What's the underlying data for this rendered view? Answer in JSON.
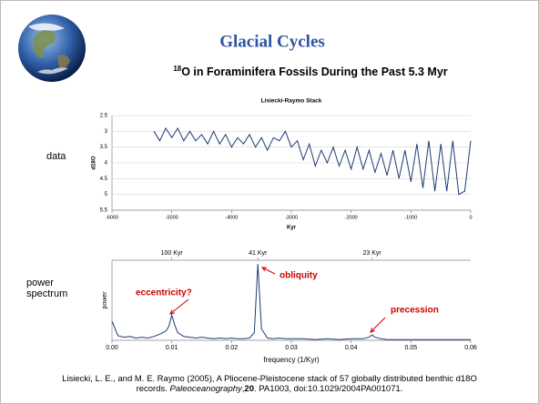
{
  "slide": {
    "title": "Glacial Cycles",
    "subtitle_sup": "18",
    "subtitle": "O in Foraminifera Fossils During the Past 5.3 Myr",
    "side_labels": [
      "data",
      "power spectrum"
    ],
    "citation": [
      "Lisiecki, L. E., and M. E. Raymo (2005), A Pliocene-Pleistocene stack of 57 globally distributed benthic d18O",
      "records. ",
      "Paleoceanography",
      ",",
      "20",
      ". PA1003, doi:10.1029/2004PA001071."
    ]
  },
  "chart_data": [
    {
      "type": "line",
      "title": "Lisiecki-Raymo Stack",
      "x_label": "Kyr",
      "y_label": "d18O",
      "color": "#1f3b73",
      "grid": true,
      "y_inverted": true,
      "xlim": [
        -6000,
        0
      ],
      "xticks": [
        -6000,
        -5000,
        -4000,
        -3000,
        -2000,
        -1000,
        0
      ],
      "ylim": [
        2.5,
        5.5
      ],
      "yticks": [
        2.5,
        3,
        3.5,
        4,
        4.5,
        5,
        5.5
      ],
      "x": [
        -5300,
        -5200,
        -5100,
        -5000,
        -4900,
        -4800,
        -4700,
        -4600,
        -4500,
        -4400,
        -4300,
        -4200,
        -4100,
        -4000,
        -3900,
        -3800,
        -3700,
        -3600,
        -3500,
        -3400,
        -3300,
        -3200,
        -3100,
        -3000,
        -2900,
        -2800,
        -2700,
        -2600,
        -2500,
        -2400,
        -2300,
        -2200,
        -2100,
        -2000,
        -1900,
        -1800,
        -1700,
        -1600,
        -1500,
        -1400,
        -1300,
        -1200,
        -1100,
        -1000,
        -900,
        -800,
        -700,
        -600,
        -500,
        -400,
        -300,
        -200,
        -100,
        0
      ],
      "values": [
        3.0,
        3.3,
        2.9,
        3.2,
        2.9,
        3.3,
        3.0,
        3.3,
        3.1,
        3.4,
        3.0,
        3.4,
        3.1,
        3.5,
        3.2,
        3.4,
        3.1,
        3.5,
        3.2,
        3.6,
        3.2,
        3.3,
        3.0,
        3.5,
        3.3,
        3.9,
        3.4,
        4.1,
        3.6,
        4.0,
        3.5,
        4.1,
        3.6,
        4.2,
        3.5,
        4.2,
        3.6,
        4.3,
        3.7,
        4.4,
        3.6,
        4.5,
        3.6,
        4.6,
        3.4,
        4.8,
        3.3,
        4.9,
        3.4,
        4.9,
        3.3,
        5.0,
        4.9,
        3.3
      ]
    },
    {
      "type": "line",
      "x_label": "frequency (1/Kyr)",
      "y_label": "power",
      "color": "#1f3b73",
      "xlim": [
        0,
        0.06
      ],
      "xticks": [
        {
          "value": 0,
          "label": "0.00"
        },
        0.01,
        0.02,
        0.03,
        0.04,
        0.05,
        0.06
      ],
      "x2ticks": [
        {
          "value": 0.01,
          "label": "100 Kyr"
        },
        {
          "value": 0.0244,
          "label": "41 Kyr"
        },
        {
          "value": 0.0435,
          "label": "23 Kyr"
        }
      ],
      "ylim": [
        0,
        1.05
      ],
      "annotations": [
        "eccentricity?",
        "obliquity",
        "precession"
      ],
      "x": [
        0,
        0.001,
        0.002,
        0.003,
        0.004,
        0.005,
        0.006,
        0.007,
        0.008,
        0.009,
        0.0095,
        0.01,
        0.0105,
        0.011,
        0.012,
        0.013,
        0.014,
        0.015,
        0.016,
        0.017,
        0.018,
        0.019,
        0.02,
        0.021,
        0.022,
        0.023,
        0.0238,
        0.0244,
        0.025,
        0.026,
        0.027,
        0.028,
        0.029,
        0.03,
        0.032,
        0.034,
        0.036,
        0.038,
        0.04,
        0.042,
        0.043,
        0.0435,
        0.044,
        0.045,
        0.046,
        0.048,
        0.05,
        0.052,
        0.054,
        0.056,
        0.058,
        0.06
      ],
      "values": [
        0.25,
        0.06,
        0.04,
        0.05,
        0.03,
        0.04,
        0.03,
        0.05,
        0.08,
        0.12,
        0.18,
        0.33,
        0.2,
        0.1,
        0.05,
        0.04,
        0.03,
        0.04,
        0.03,
        0.02,
        0.03,
        0.02,
        0.03,
        0.02,
        0.02,
        0.03,
        0.1,
        1.0,
        0.15,
        0.03,
        0.02,
        0.03,
        0.02,
        0.02,
        0.02,
        0.01,
        0.02,
        0.01,
        0.02,
        0.02,
        0.04,
        0.07,
        0.04,
        0.02,
        0.01,
        0.01,
        0.01,
        0.01,
        0.01,
        0.01,
        0.01,
        0.01
      ]
    }
  ]
}
